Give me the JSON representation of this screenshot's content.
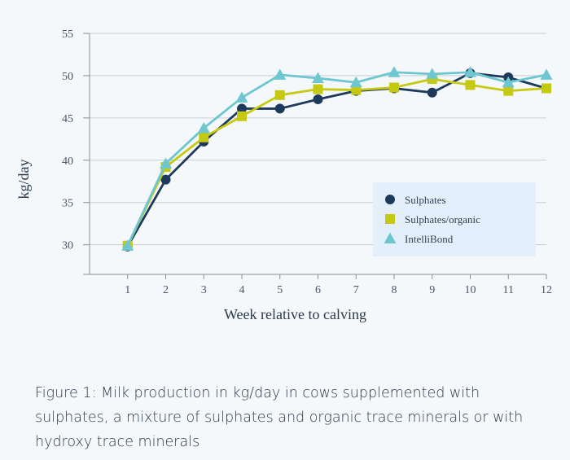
{
  "chart_data": {
    "type": "line",
    "xlabel": "Week relative to calving",
    "ylabel": "kg/day",
    "x": [
      1,
      2,
      3,
      4,
      5,
      6,
      7,
      8,
      9,
      10,
      11,
      12
    ],
    "xlim": [
      0,
      12
    ],
    "ylim": [
      26.5,
      55
    ],
    "yticks": [
      30,
      35,
      40,
      45,
      50,
      55
    ],
    "legend_position": "bottom-right",
    "series": [
      {
        "name": "Sulphates",
        "color": "#1d3a5c",
        "marker": "circle",
        "values": [
          29.8,
          37.7,
          42.2,
          46.1,
          46.1,
          47.2,
          48.2,
          48.5,
          48.0,
          50.3,
          49.8,
          48.5
        ]
      },
      {
        "name": "Sulphates/organic",
        "color": "#c6c912",
        "marker": "square",
        "values": [
          29.9,
          39.2,
          42.7,
          45.2,
          47.7,
          48.4,
          48.3,
          48.6,
          49.6,
          48.9,
          48.2,
          48.5
        ]
      },
      {
        "name": "IntelliBond",
        "color": "#6ec7d0",
        "marker": "triangle",
        "values": [
          29.9,
          39.6,
          43.8,
          47.4,
          50.1,
          49.7,
          49.2,
          50.4,
          50.2,
          50.4,
          49.2,
          50.1
        ]
      }
    ]
  },
  "caption": "Figure 1: Milk production in kg/day in cows supplemented with sulphates, a mixture of sulphates and organic trace minerals or with hydroxy trace minerals"
}
